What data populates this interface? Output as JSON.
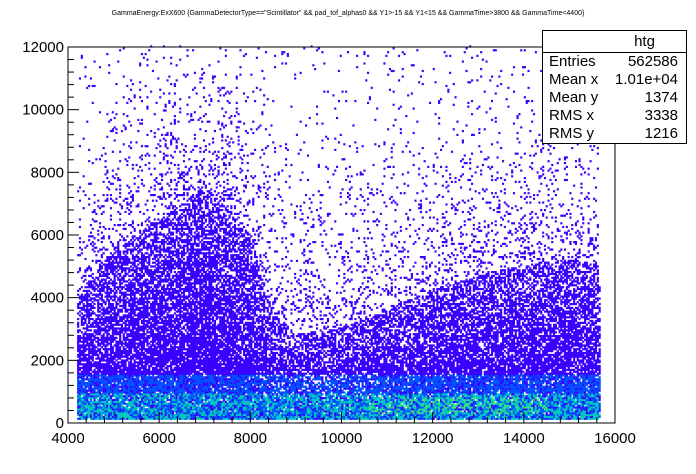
{
  "chart_data": {
    "type": "heatmap",
    "title": "GammaEnergy:ExX600 {GammaDetectorType==\"Scintillator\" && pad_tof_alphas0 && Y1>-15 && Y1<15 && GammaTime>3800 && GammaTime<4400}",
    "xlabel": "",
    "ylabel": "",
    "xlim": [
      4000,
      16000
    ],
    "ylim": [
      0,
      12000
    ],
    "x_ticks": [
      "4000",
      "6000",
      "8000",
      "10000",
      "12000",
      "14000",
      "16000"
    ],
    "y_ticks": [
      "0",
      "2000",
      "4000",
      "6000",
      "8000",
      "10000",
      "12000"
    ],
    "x_range_data": [
      4200,
      15650
    ],
    "density_profile": [
      {
        "x": 4200,
        "upper_edge": 4000,
        "peak_y": 500
      },
      {
        "x": 5000,
        "upper_edge": 5500,
        "peak_y": 500
      },
      {
        "x": 6000,
        "upper_edge": 6500,
        "peak_y": 500
      },
      {
        "x": 7000,
        "upper_edge": 7500,
        "peak_y": 500
      },
      {
        "x": 8000,
        "upper_edge": 6000,
        "peak_y": 500
      },
      {
        "x": 8400,
        "upper_edge": 3500,
        "peak_y": 400
      },
      {
        "x": 9000,
        "upper_edge": 2800,
        "peak_y": 400
      },
      {
        "x": 10000,
        "upper_edge": 3000,
        "peak_y": 400
      },
      {
        "x": 11000,
        "upper_edge": 3600,
        "peak_y": 450
      },
      {
        "x": 12000,
        "upper_edge": 4200,
        "peak_y": 450
      },
      {
        "x": 13000,
        "upper_edge": 4700,
        "peak_y": 500
      },
      {
        "x": 14000,
        "upper_edge": 5000,
        "peak_y": 500
      },
      {
        "x": 15000,
        "upper_edge": 5200,
        "peak_y": 500
      },
      {
        "x": 15600,
        "upper_edge": 5000,
        "peak_y": 500
      }
    ],
    "colors": {
      "low": "#3a00ff",
      "mid": "#0050ff",
      "high": "#00c8c0",
      "max": "#40e080"
    }
  },
  "stats_box": {
    "name": "htg",
    "rows": [
      {
        "label": "Entries",
        "value": "562586"
      },
      {
        "label": "Mean x",
        "value": "1.01e+04"
      },
      {
        "label": "Mean y",
        "value": "1374"
      },
      {
        "label": "RMS x",
        "value": "3338"
      },
      {
        "label": "RMS y",
        "value": "1216"
      }
    ]
  }
}
